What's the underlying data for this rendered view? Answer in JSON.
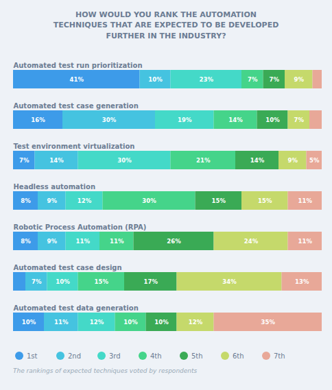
{
  "chart_data": {
    "type": "bar",
    "orientation": "horizontal",
    "stacked": true,
    "title": "HOW WOULD YOU RANK THE AUTOMATION\nTECHNIQUES THAT ARE EXPECTED TO BE DEVELOPED\nFURTHER IN THE INDUSTRY?",
    "subtitle": "The rankings of expected techniques voted by respondents",
    "categories": [
      "Automated test run prioritization",
      "Automated test case generation",
      "Test environment virtualization",
      "Headless automation",
      "Robotic Process Automation (RPA)",
      "Automated test case design",
      "Automated test data generation"
    ],
    "series": [
      {
        "name": "1st",
        "color": "#3d9be9",
        "values": [
          41,
          16,
          7,
          8,
          8,
          4,
          10
        ],
        "value_labels": [
          "41%",
          "16%",
          "7%",
          "8%",
          "8%",
          null,
          "10%"
        ]
      },
      {
        "name": "2nd",
        "color": "#45c3e0",
        "values": [
          10,
          30,
          14,
          9,
          9,
          7,
          11
        ],
        "value_labels": [
          "10%",
          "30%",
          "14%",
          "9%",
          "9%",
          "7%",
          "11%"
        ]
      },
      {
        "name": "3rd",
        "color": "#44d9c8",
        "values": [
          23,
          19,
          30,
          12,
          11,
          10,
          12
        ],
        "value_labels": [
          "23%",
          "19%",
          "30%",
          "12%",
          "11%",
          "10%",
          "12%"
        ]
      },
      {
        "name": "4th",
        "color": "#45d48a",
        "values": [
          7,
          14,
          21,
          30,
          11,
          15,
          10
        ],
        "value_labels": [
          "7%",
          "14%",
          "21%",
          "30%",
          "11%",
          "15%",
          "10%"
        ]
      },
      {
        "name": "5th",
        "color": "#3aaa55",
        "values": [
          7,
          10,
          14,
          15,
          26,
          17,
          10
        ],
        "value_labels": [
          "7%",
          "10%",
          "14%",
          "15%",
          "26%",
          "17%",
          "10%"
        ]
      },
      {
        "name": "6th",
        "color": "#c5d96b",
        "values": [
          9,
          7,
          9,
          15,
          24,
          34,
          12
        ],
        "value_labels": [
          "9%",
          "7%",
          "9%",
          "15%",
          "24%",
          "34%",
          "12%"
        ]
      },
      {
        "name": "7th",
        "color": "#e8a898",
        "values": [
          3,
          4,
          5,
          11,
          11,
          13,
          35
        ],
        "value_labels": [
          null,
          null,
          "5%",
          "11%",
          "11%",
          "13%",
          "35%"
        ]
      }
    ],
    "xlim": [
      0,
      100
    ],
    "data_labels": true,
    "tick_labels": false,
    "grid": false,
    "legend": "bottom"
  }
}
